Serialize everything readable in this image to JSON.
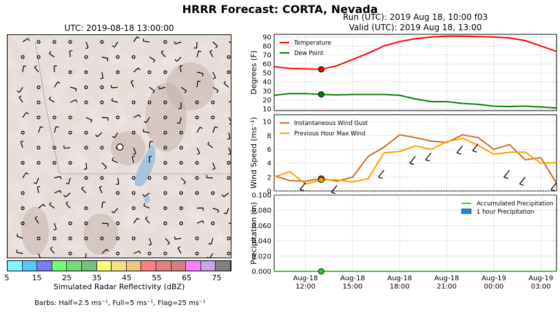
{
  "title": "HRRR Forecast: CORTA, Nevada",
  "map": {
    "title": "UTC: 2019-08-18 13:00:00",
    "colorbar": {
      "label": "Simulated Radar Reflectivity (dBZ)",
      "ticks": [
        "5",
        "15",
        "25",
        "35",
        "45",
        "55",
        "65",
        "75"
      ],
      "colors": [
        "#7ff9ff",
        "#55c8ff",
        "#7d7bf7",
        "#72fd72",
        "#70de72",
        "#6fc27f",
        "#fbfe79",
        "#f4e07f",
        "#efc57f",
        "#fd7f7f",
        "#e57f7f",
        "#d58080",
        "#fc7ffc",
        "#c9a5e3",
        "#808080"
      ]
    },
    "barb_note": "Barbs: Half=2.5 ms⁻¹, Full=5 ms⁻¹, Flag=25 ms⁻¹"
  },
  "run_line1": "Run (UTC): 2019 Aug 18, 10:00 f03",
  "run_line2": "Valid (UTC): 2019 Aug 18, 13:00",
  "x_ticks": [
    {
      "h": 12,
      "d": "Aug-18",
      "t": "12:00"
    },
    {
      "h": 15,
      "d": "Aug-18",
      "t": "15:00"
    },
    {
      "h": 18,
      "d": "Aug-18",
      "t": "18:00"
    },
    {
      "h": 21,
      "d": "Aug-18",
      "t": "21:00"
    },
    {
      "h": 24,
      "d": "Aug-19",
      "t": "00:00"
    },
    {
      "h": 27,
      "d": "Aug-19",
      "t": "03:00"
    }
  ],
  "chart_data": [
    {
      "type": "line",
      "ylabel": "Degrees (F)",
      "ylim": [
        8,
        93
      ],
      "yticks": [
        10,
        20,
        30,
        40,
        50,
        60,
        70,
        80,
        90
      ],
      "grid": true,
      "legend": "top-left",
      "x_hours": [
        10,
        11,
        12,
        13,
        14,
        15,
        16,
        17,
        18,
        19,
        20,
        21,
        22,
        23,
        24,
        25,
        26,
        27,
        28
      ],
      "current_hour": 13,
      "series": [
        {
          "name": "Temperature",
          "color": "#ff0000",
          "values": [
            57,
            55,
            54.5,
            54,
            58,
            65,
            72,
            80,
            85,
            88,
            90,
            91,
            91,
            90.5,
            90,
            89,
            86,
            80,
            74
          ]
        },
        {
          "name": "Dew Point",
          "color": "#008000",
          "values": [
            25,
            27,
            27,
            26,
            25.5,
            26,
            26,
            26,
            25,
            21,
            18,
            18,
            16,
            15,
            13,
            12.5,
            13,
            12,
            11
          ]
        }
      ]
    },
    {
      "type": "line",
      "ylabel": "Wind Speed (ms⁻¹)",
      "ylim": [
        0,
        11
      ],
      "yticks": [
        0,
        2,
        4,
        6,
        8,
        10
      ],
      "grid": true,
      "legend": "top-left",
      "x_hours": [
        10,
        11,
        12,
        13,
        14,
        15,
        16,
        17,
        18,
        19,
        20,
        21,
        22,
        23,
        24,
        25,
        26,
        27,
        28
      ],
      "current_hour": 13,
      "series": [
        {
          "name": "Instantaneous Wind Gust",
          "color": "#d2691e",
          "values": [
            2.2,
            1.5,
            1.4,
            1.8,
            1.4,
            2.0,
            5.0,
            6.3,
            8.1,
            7.7,
            7.2,
            7.0,
            8.1,
            7.7,
            6.0,
            6.7,
            4.5,
            4.8,
            1.1
          ]
        },
        {
          "name": "Previous Hour Max Wind",
          "color": "#ff9c00",
          "values": [
            2.0,
            2.8,
            1.0,
            1.6,
            1.6,
            1.3,
            1.8,
            5.5,
            5.7,
            6.5,
            6.0,
            7.1,
            7.6,
            6.6,
            5.3,
            5.6,
            5.6,
            4.0,
            4.1
          ]
        }
      ]
    },
    {
      "type": "bar",
      "ylabel": "Precipitation (in)",
      "ylim": [
        0,
        0.1
      ],
      "yticks": [
        0.0,
        0.02,
        0.04,
        0.06,
        0.08,
        0.1
      ],
      "grid": true,
      "legend": "top-right",
      "current_hour": 13,
      "series": [
        {
          "name": "Accumulated Precipitation",
          "color": "#33cc33",
          "values": [
            0,
            0,
            0,
            0,
            0,
            0,
            0,
            0,
            0,
            0,
            0,
            0,
            0,
            0,
            0,
            0,
            0,
            0,
            0
          ]
        },
        {
          "name": "1 hour Precipitation",
          "color": "#1e88e5",
          "values": [
            0,
            0,
            0,
            0,
            0,
            0,
            0,
            0,
            0,
            0,
            0,
            0,
            0,
            0,
            0,
            0,
            0,
            0,
            0
          ]
        }
      ]
    }
  ]
}
